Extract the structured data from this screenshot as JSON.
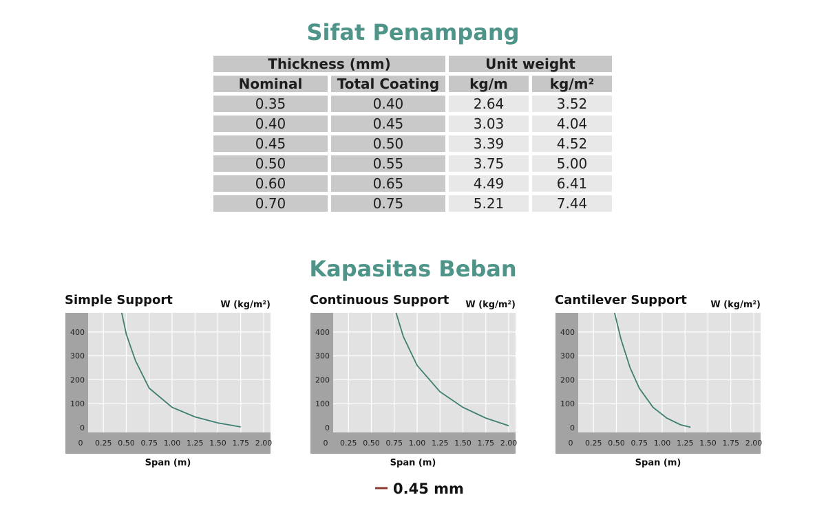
{
  "header": {
    "title": "Sifat Penampang"
  },
  "table": {
    "group_headers": [
      "Thickness (mm)",
      "Unit weight"
    ],
    "columns": [
      "Nominal",
      "Total Coating",
      "kg/m",
      "kg/m²"
    ],
    "rows": [
      [
        "0.35",
        "0.40",
        "2.64",
        "3.52"
      ],
      [
        "0.40",
        "0.45",
        "3.03",
        "4.04"
      ],
      [
        "0.45",
        "0.50",
        "3.39",
        "4.52"
      ],
      [
        "0.50",
        "0.55",
        "3.75",
        "5.00"
      ],
      [
        "0.60",
        "0.65",
        "4.49",
        "6.41"
      ],
      [
        "0.70",
        "0.75",
        "5.21",
        "7.44"
      ]
    ]
  },
  "section_title": "Kapasitas Beban",
  "legend": {
    "label": "0.45 mm",
    "color": "#8b3a2e"
  },
  "chart_data": [
    {
      "type": "line",
      "title": "Simple Support",
      "y_label": "W (kg/m²)",
      "x_label": "Span (m)",
      "xlim": [
        0,
        2
      ],
      "ylim": [
        -20,
        480
      ],
      "xticks": [
        0,
        0.25,
        {
          "value": 0.5,
          "label": "0.50"
        },
        0.75,
        {
          "value": 1,
          "label": "1.00"
        },
        1.25,
        {
          "value": 1.5,
          "label": "1.50"
        },
        1.75,
        {
          "value": 2,
          "label": "2.00"
        }
      ],
      "yticks": [
        0,
        100,
        200,
        300,
        400
      ],
      "grid": true,
      "series": [
        {
          "color": "#3f7f72",
          "x": [
            0.45,
            0.5,
            0.6,
            0.75,
            1.0,
            1.25,
            1.5,
            1.75
          ],
          "values": [
            480,
            390,
            280,
            165,
            85,
            45,
            20,
            3
          ]
        }
      ]
    },
    {
      "type": "line",
      "title": "Continuous Support",
      "y_label": "W (kg/m²)",
      "x_label": "Span (m)",
      "xlim": [
        0,
        2
      ],
      "ylim": [
        -20,
        480
      ],
      "xticks": [
        0,
        0.25,
        {
          "value": 0.5,
          "label": "0.50"
        },
        0.75,
        {
          "value": 1,
          "label": "1.00"
        },
        1.25,
        {
          "value": 1.5,
          "label": "1.50"
        },
        1.75,
        {
          "value": 2,
          "label": "2.00"
        }
      ],
      "yticks": [
        0,
        100,
        200,
        300,
        400
      ],
      "grid": true,
      "series": [
        {
          "color": "#3f7f72",
          "x": [
            0.77,
            0.85,
            1.0,
            1.25,
            1.5,
            1.75,
            2.0
          ],
          "values": [
            480,
            380,
            260,
            150,
            85,
            40,
            8
          ]
        }
      ]
    },
    {
      "type": "line",
      "title": "Cantilever Support",
      "y_label": "W (kg/m²)",
      "x_label": "Span (m)",
      "xlim": [
        0,
        2
      ],
      "ylim": [
        -20,
        480
      ],
      "xticks": [
        0,
        0.25,
        {
          "value": 0.5,
          "label": "0.50"
        },
        0.75,
        {
          "value": 1,
          "label": "1.00"
        },
        1.25,
        {
          "value": 1.5,
          "label": "1.50"
        },
        1.75,
        {
          "value": 2,
          "label": "2.00"
        }
      ],
      "yticks": [
        0,
        100,
        200,
        300,
        400
      ],
      "grid": true,
      "series": [
        {
          "color": "#3f7f72",
          "x": [
            0.48,
            0.55,
            0.65,
            0.75,
            0.9,
            1.05,
            1.2,
            1.31
          ],
          "values": [
            480,
            370,
            250,
            165,
            85,
            40,
            12,
            2
          ]
        }
      ]
    }
  ]
}
